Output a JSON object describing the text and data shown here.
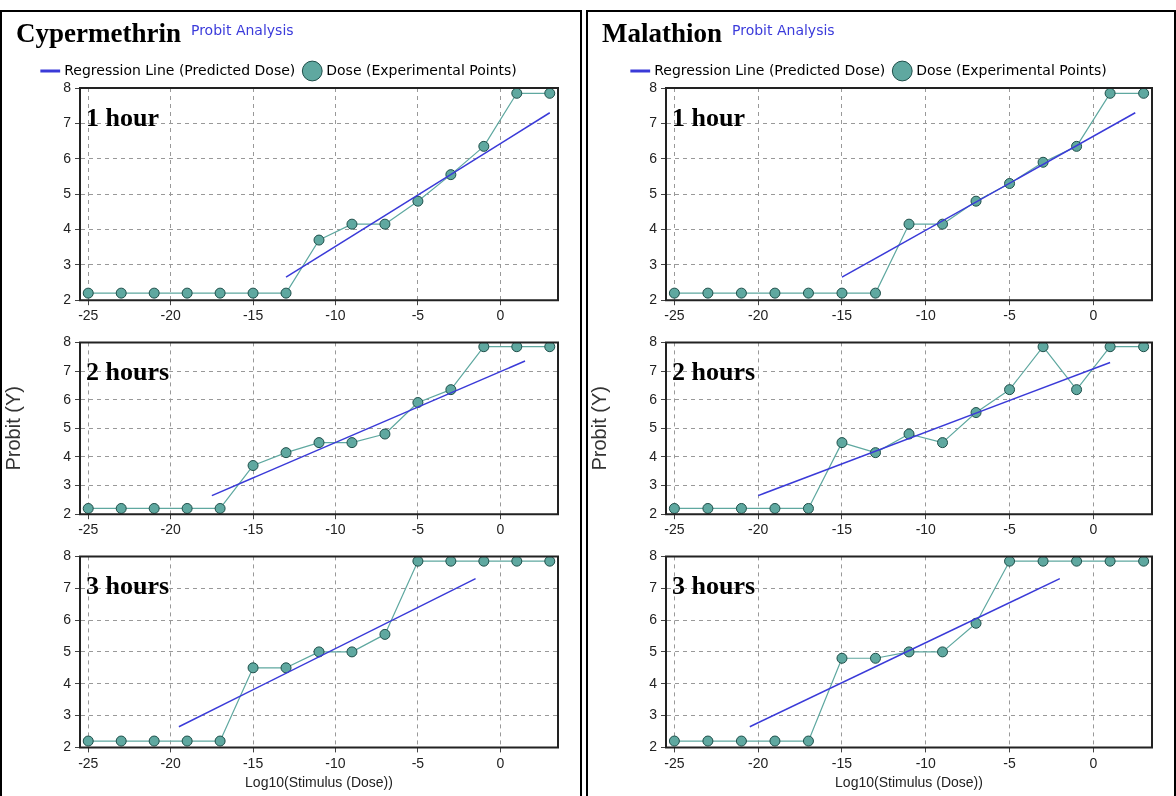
{
  "chart_data": [
    {
      "type": "line",
      "title": "Cypermethrin",
      "subtitle": "Probit Analysis",
      "annotations": [
        "1 hour"
      ],
      "legend": "top",
      "grid": true,
      "x": [
        -25,
        -23,
        -21,
        -19,
        -17,
        -15,
        -13,
        -11,
        -9,
        -7,
        -5,
        -3,
        -1,
        1,
        3
      ],
      "xlim": [
        -25.5,
        3.5
      ],
      "xticks": [
        -25,
        -20,
        -15,
        -10,
        -5,
        0
      ],
      "ylim": [
        2,
        8
      ],
      "yticks": [
        2,
        3,
        4,
        5,
        6,
        7,
        8
      ],
      "series": [
        {
          "name": "Regression Line (Predicted Dose)",
          "color": "#3a3ad8",
          "marker": "none",
          "x": [
            -13,
            3
          ],
          "values": [
            2.65,
            7.3
          ]
        },
        {
          "name": "Dose (Experimental Points)",
          "color": "#5fa8a0",
          "marker": "circle",
          "values": [
            2.2,
            2.2,
            2.2,
            2.2,
            2.2,
            2.2,
            2.2,
            3.7,
            4.15,
            4.15,
            4.8,
            5.55,
            6.35,
            7.85,
            7.85
          ]
        }
      ]
    },
    {
      "type": "line",
      "ylabel": "Probit (Y)",
      "annotations": [
        "2 hours"
      ],
      "grid": true,
      "x": [
        -25,
        -23,
        -21,
        -19,
        -17,
        -15,
        -13,
        -11,
        -9,
        -7,
        -5,
        -3,
        -1,
        1,
        3
      ],
      "xlim": [
        -25.5,
        3.5
      ],
      "xticks": [
        -25,
        -20,
        -15,
        -10,
        -5,
        0
      ],
      "ylim": [
        2,
        8
      ],
      "yticks": [
        2,
        3,
        4,
        5,
        6,
        7,
        8
      ],
      "series": [
        {
          "color": "#3a3ad8",
          "marker": "none",
          "x": [
            -17.5,
            1.5
          ],
          "values": [
            2.65,
            7.35
          ]
        },
        {
          "color": "#5fa8a0",
          "marker": "circle",
          "values": [
            2.2,
            2.2,
            2.2,
            2.2,
            2.2,
            3.7,
            4.15,
            4.5,
            4.5,
            4.8,
            5.9,
            6.35,
            7.85,
            7.85,
            7.85
          ]
        }
      ]
    },
    {
      "type": "line",
      "xlabel": "Log10(Stimulus (Dose))",
      "annotations": [
        "3 hours"
      ],
      "grid": true,
      "x": [
        -25,
        -23,
        -21,
        -19,
        -17,
        -15,
        -13,
        -11,
        -9,
        -7,
        -5,
        -3,
        -1,
        1,
        3
      ],
      "xlim": [
        -25.5,
        3.5
      ],
      "xticks": [
        -25,
        -20,
        -15,
        -10,
        -5,
        0
      ],
      "ylim": [
        2,
        8
      ],
      "yticks": [
        2,
        3,
        4,
        5,
        6,
        7,
        8
      ],
      "series": [
        {
          "color": "#3a3ad8",
          "marker": "none",
          "x": [
            -19.5,
            -1.5
          ],
          "values": [
            2.65,
            7.3
          ]
        },
        {
          "color": "#5fa8a0",
          "marker": "circle",
          "values": [
            2.2,
            2.2,
            2.2,
            2.2,
            2.2,
            4.5,
            4.5,
            5.0,
            5.0,
            5.55,
            7.85,
            7.85,
            7.85,
            7.85,
            7.85
          ]
        }
      ]
    },
    {
      "type": "line",
      "title": "Malathion",
      "subtitle": "Probit Analysis",
      "annotations": [
        "1 hour"
      ],
      "legend": "top",
      "grid": true,
      "x": [
        -25,
        -23,
        -21,
        -19,
        -17,
        -15,
        -13,
        -11,
        -9,
        -7,
        -5,
        -3,
        -1,
        1,
        3
      ],
      "xlim": [
        -25.5,
        3.5
      ],
      "xticks": [
        -25,
        -20,
        -15,
        -10,
        -5,
        0
      ],
      "ylim": [
        2,
        8
      ],
      "yticks": [
        2,
        3,
        4,
        5,
        6,
        7,
        8
      ],
      "series": [
        {
          "name": "Regression Line (Predicted Dose)",
          "color": "#3a3ad8",
          "marker": "none",
          "x": [
            -15,
            2.5
          ],
          "values": [
            2.65,
            7.3
          ]
        },
        {
          "name": "Dose (Experimental Points)",
          "color": "#5fa8a0",
          "marker": "circle",
          "values": [
            2.2,
            2.2,
            2.2,
            2.2,
            2.2,
            2.2,
            2.2,
            4.15,
            4.15,
            4.8,
            5.3,
            5.9,
            6.35,
            7.85,
            7.85
          ]
        }
      ]
    },
    {
      "type": "line",
      "ylabel": "Probit (Y)",
      "annotations": [
        "2 hours"
      ],
      "grid": true,
      "x": [
        -25,
        -23,
        -21,
        -19,
        -17,
        -15,
        -13,
        -11,
        -9,
        -7,
        -5,
        -3,
        -1,
        1,
        3
      ],
      "xlim": [
        -25.5,
        3.5
      ],
      "xticks": [
        -25,
        -20,
        -15,
        -10,
        -5,
        0
      ],
      "ylim": [
        2,
        8
      ],
      "yticks": [
        2,
        3,
        4,
        5,
        6,
        7,
        8
      ],
      "series": [
        {
          "color": "#3a3ad8",
          "marker": "none",
          "x": [
            -20,
            1
          ],
          "values": [
            2.65,
            7.3
          ]
        },
        {
          "color": "#5fa8a0",
          "marker": "circle",
          "values": [
            2.2,
            2.2,
            2.2,
            2.2,
            2.2,
            4.5,
            4.15,
            4.8,
            4.5,
            5.55,
            6.35,
            7.85,
            6.35,
            7.85,
            7.85
          ]
        }
      ]
    },
    {
      "type": "line",
      "xlabel": "Log10(Stimulus (Dose))",
      "annotations": [
        "3 hours"
      ],
      "grid": true,
      "x": [
        -25,
        -23,
        -21,
        -19,
        -17,
        -15,
        -13,
        -11,
        -9,
        -7,
        -5,
        -3,
        -1,
        1,
        3
      ],
      "xlim": [
        -25.5,
        3.5
      ],
      "xticks": [
        -25,
        -20,
        -15,
        -10,
        -5,
        0
      ],
      "ylim": [
        2,
        8
      ],
      "yticks": [
        2,
        3,
        4,
        5,
        6,
        7,
        8
      ],
      "series": [
        {
          "color": "#3a3ad8",
          "marker": "none",
          "x": [
            -20.5,
            -2
          ],
          "values": [
            2.65,
            7.3
          ]
        },
        {
          "color": "#5fa8a0",
          "marker": "circle",
          "values": [
            2.2,
            2.2,
            2.2,
            2.2,
            2.2,
            4.8,
            4.8,
            5.0,
            5.0,
            5.9,
            7.85,
            7.85,
            7.85,
            7.85,
            7.85
          ]
        }
      ]
    }
  ]
}
